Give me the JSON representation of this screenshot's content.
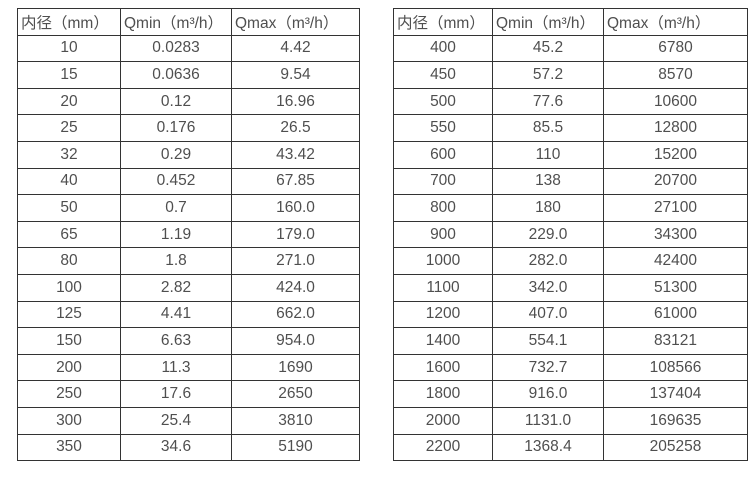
{
  "colors": {
    "background": "#ffffff",
    "border": "#333333",
    "text": "#4f4f4f"
  },
  "tables": [
    {
      "name": "flow-spec-table-small-diameters",
      "headers": [
        "内径（mm）",
        "Qmin（m³/h）",
        "Qmax（m³/h）"
      ],
      "rows": [
        [
          "10",
          "0.0283",
          "4.42"
        ],
        [
          "15",
          "0.0636",
          "9.54"
        ],
        [
          "20",
          "0.12",
          "16.96"
        ],
        [
          "25",
          "0.176",
          "26.5"
        ],
        [
          "32",
          "0.29",
          "43.42"
        ],
        [
          "40",
          "0.452",
          "67.85"
        ],
        [
          "50",
          "0.7",
          "160.0"
        ],
        [
          "65",
          "1.19",
          "179.0"
        ],
        [
          "80",
          "1.8",
          "271.0"
        ],
        [
          "100",
          "2.82",
          "424.0"
        ],
        [
          "125",
          "4.41",
          "662.0"
        ],
        [
          "150",
          "6.63",
          "954.0"
        ],
        [
          "200",
          "11.3",
          "1690"
        ],
        [
          "250",
          "17.6",
          "2650"
        ],
        [
          "300",
          "25.4",
          "3810"
        ],
        [
          "350",
          "34.6",
          "5190"
        ]
      ]
    },
    {
      "name": "flow-spec-table-large-diameters",
      "headers": [
        "内径（mm）",
        "Qmin（m³/h）",
        "Qmax（m³/h）"
      ],
      "rows": [
        [
          "400",
          "45.2",
          "6780"
        ],
        [
          "450",
          "57.2",
          "8570"
        ],
        [
          "500",
          "77.6",
          "10600"
        ],
        [
          "550",
          "85.5",
          "12800"
        ],
        [
          "600",
          "110",
          "15200"
        ],
        [
          "700",
          "138",
          "20700"
        ],
        [
          "800",
          "180",
          "27100"
        ],
        [
          "900",
          "229.0",
          "34300"
        ],
        [
          "1000",
          "282.0",
          "42400"
        ],
        [
          "1100",
          "342.0",
          "51300"
        ],
        [
          "1200",
          "407.0",
          "61000"
        ],
        [
          "1400",
          "554.1",
          "83121"
        ],
        [
          "1600",
          "732.7",
          "108566"
        ],
        [
          "1800",
          "916.0",
          "137404"
        ],
        [
          "2000",
          "1131.0",
          "169635"
        ],
        [
          "2200",
          "1368.4",
          "205258"
        ]
      ]
    }
  ]
}
